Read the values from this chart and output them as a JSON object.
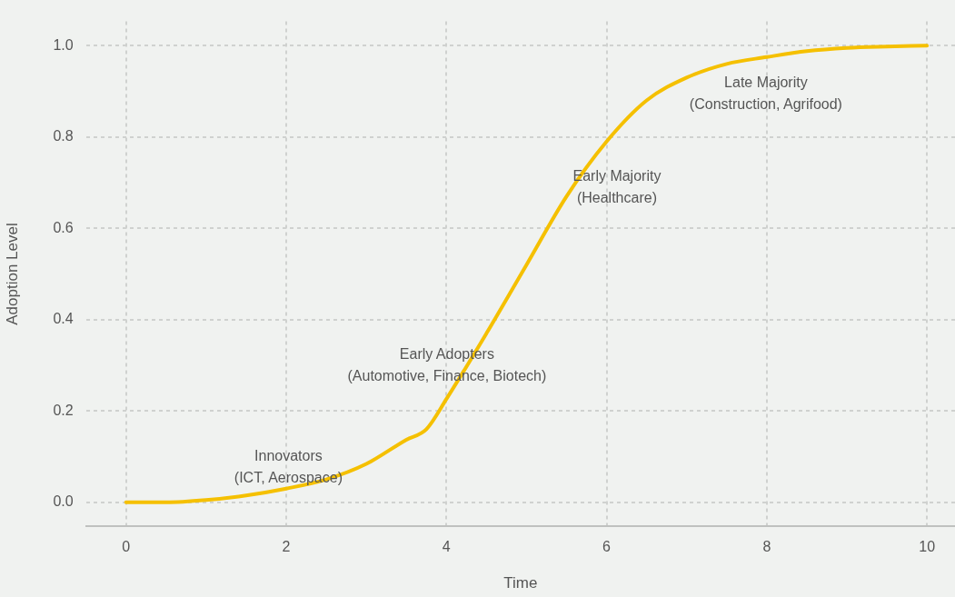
{
  "chart_data": {
    "type": "line",
    "xlabel": "Time",
    "ylabel": "Adoption Level",
    "x": [
      0,
      0.5,
      1,
      1.5,
      2,
      2.5,
      3,
      3.5,
      3.75,
      4,
      4.5,
      5,
      5.5,
      6,
      6.5,
      7,
      7.5,
      8,
      8.5,
      9,
      9.5,
      10
    ],
    "series": [
      {
        "color": "#f5c000",
        "values": [
          0,
          0,
          0.005,
          0.015,
          0.03,
          0.05,
          0.084,
          0.137,
          0.16,
          0.226,
          0.37,
          0.52,
          0.67,
          0.79,
          0.88,
          0.93,
          0.96,
          0.975,
          0.988,
          0.995,
          0.998,
          1.0
        ]
      }
    ],
    "xlim": [
      -0.5,
      10.35
    ],
    "ylim": [
      -0.053,
      1.053
    ],
    "xticks": [
      0,
      2,
      4,
      6,
      8,
      10
    ],
    "yticks": [
      {
        "value": 0,
        "label": "0.0"
      },
      {
        "value": 0.2,
        "label": "0.2"
      },
      {
        "value": 0.4,
        "label": "0.4"
      },
      {
        "value": 0.6,
        "label": "0.6"
      },
      {
        "value": 0.8,
        "label": "0.8"
      },
      {
        "value": 1,
        "label": "1.0"
      }
    ],
    "grid": true,
    "legend": false,
    "marker": "none",
    "line_style": "solid",
    "annotations": [
      "Innovators\n(ICT, Aerospace)",
      "Early Adopters\n(Automotive, Finance, Biotech)",
      "Early Majority\n(Healthcare)",
      "Late Majority\n(Construction, Agrifood)"
    ]
  }
}
